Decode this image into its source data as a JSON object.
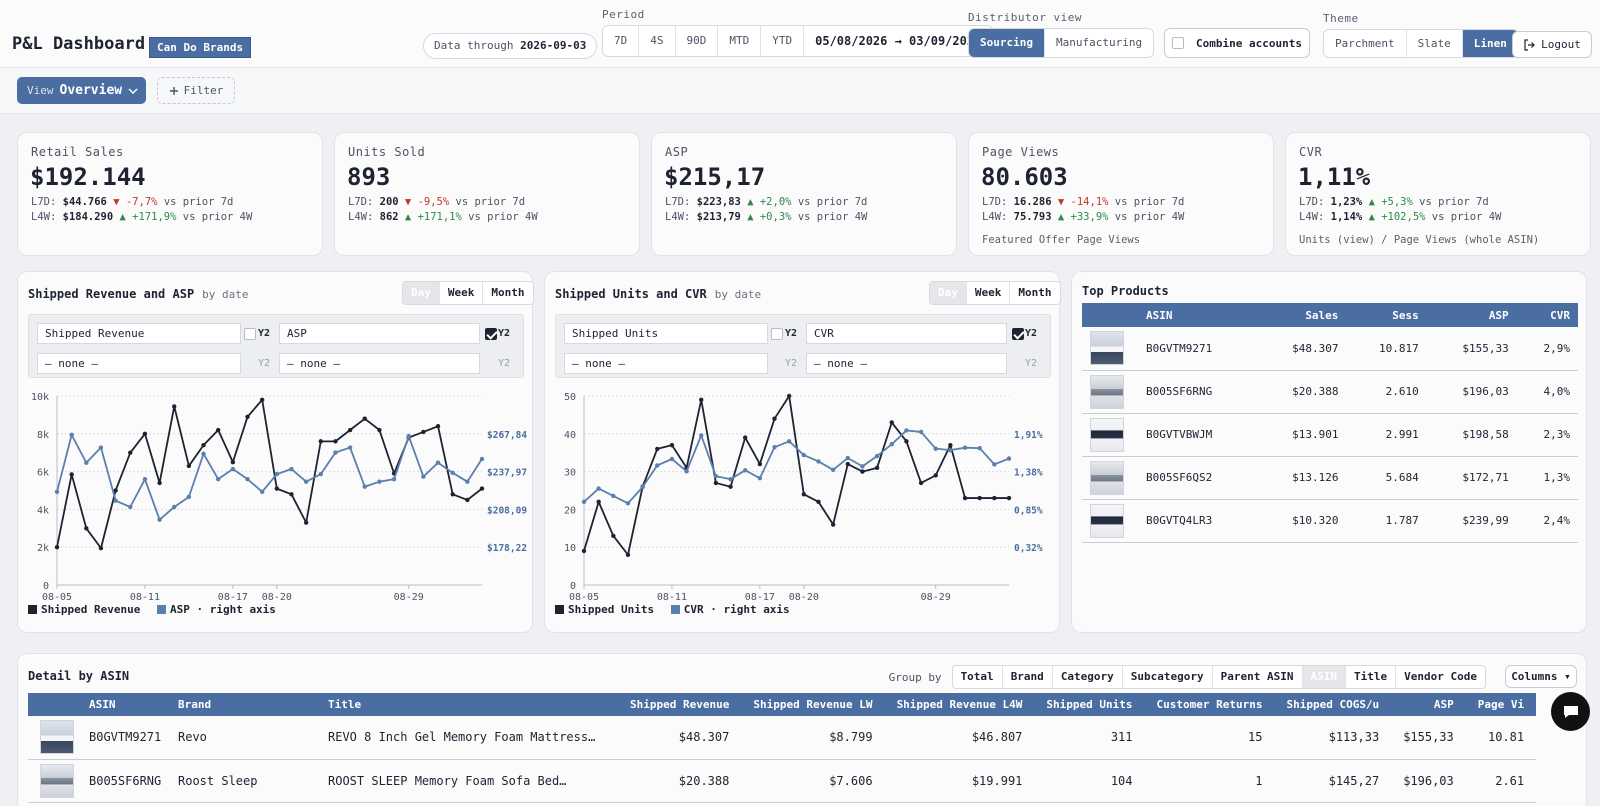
{
  "header": {
    "title": "P&L Dashboard",
    "brand": "Can Do Brands",
    "data_through_label": "Data through",
    "data_through_value": "2026-09-03",
    "period_label": "Period",
    "period_options": [
      "7D",
      "4S",
      "90D",
      "MTD",
      "YTD"
    ],
    "date_range": "05/08/2026 → 03/09/2026",
    "distributor_label": "Distributor view",
    "distributor_options": [
      "Sourcing",
      "Manufacturing"
    ],
    "distributor_selected": "Sourcing",
    "combine_accounts": "Combine accounts",
    "theme_label": "Theme",
    "theme_options": [
      "Parchment",
      "Slate",
      "Linen"
    ],
    "theme_selected": "Linen",
    "logout": "Logout"
  },
  "toolbar": {
    "view_label": "View",
    "view_value": "Overview",
    "filter_label": "Filter"
  },
  "kpis": [
    {
      "title": "Retail Sales",
      "value": "$192.144",
      "l7d_label": "L7D:",
      "l7d_value": "$44.766",
      "l7d_change": "▼ -7,7%",
      "l7d_dir": "down",
      "l7d_suffix": "vs prior 7d",
      "l4w_label": "L4W:",
      "l4w_value": "$184.290",
      "l4w_change": "▲ +171,9%",
      "l4w_dir": "up",
      "l4w_suffix": "vs prior 4W",
      "note": ""
    },
    {
      "title": "Units Sold",
      "value": "893",
      "l7d_label": "L7D:",
      "l7d_value": "200",
      "l7d_change": "▼ -9,5%",
      "l7d_dir": "down",
      "l7d_suffix": "vs prior 7d",
      "l4w_label": "L4W:",
      "l4w_value": "862",
      "l4w_change": "▲ +171,1%",
      "l4w_dir": "up",
      "l4w_suffix": "vs prior 4W",
      "note": ""
    },
    {
      "title": "ASP",
      "value": "$215,17",
      "l7d_label": "L7D:",
      "l7d_value": "$223,83",
      "l7d_change": "▲ +2,0%",
      "l7d_dir": "up",
      "l7d_suffix": "vs prior 7d",
      "l4w_label": "L4W:",
      "l4w_value": "$213,79",
      "l4w_change": "▲ +0,3%",
      "l4w_dir": "up",
      "l4w_suffix": "vs prior 4W",
      "note": ""
    },
    {
      "title": "Page Views",
      "value": "80.603",
      "l7d_label": "L7D:",
      "l7d_value": "16.286",
      "l7d_change": "▼ -14,1%",
      "l7d_dir": "down",
      "l7d_suffix": "vs prior 7d",
      "l4w_label": "L4W:",
      "l4w_value": "75.793",
      "l4w_change": "▲ +33,9%",
      "l4w_dir": "up",
      "l4w_suffix": "vs prior 4W",
      "note": "Featured Offer Page Views"
    },
    {
      "title": "CVR",
      "value": "1,11%",
      "l7d_label": "L7D:",
      "l7d_value": "1,23%",
      "l7d_change": "▲ +5,3%",
      "l7d_dir": "up",
      "l7d_suffix": "vs prior 7d",
      "l4w_label": "L4W:",
      "l4w_value": "1,14%",
      "l4w_change": "▲ +102,5%",
      "l4w_dir": "up",
      "l4w_suffix": "vs prior 4W",
      "note": "Units (view) / Page Views (whole ASIN)"
    }
  ],
  "panels": {
    "revenue": {
      "title": "Shipped Revenue and ASP",
      "subtitle": "by date",
      "granularity": [
        "Day",
        "Week",
        "Month"
      ],
      "primary_metric": "Shipped Revenue",
      "secondary_metric": "ASP",
      "none_label": "— none —",
      "y2_label": "Y2",
      "legend": [
        "Shipped Revenue",
        "ASP · right axis"
      ]
    },
    "units": {
      "title": "Shipped Units and CVR",
      "subtitle": "by date",
      "granularity": [
        "Day",
        "Week",
        "Month"
      ],
      "primary_metric": "Shipped Units",
      "secondary_metric": "CVR",
      "none_label": "— none —",
      "y2_label": "Y2",
      "legend": [
        "Shipped Units",
        "CVR · right axis"
      ]
    }
  },
  "colors": {
    "accent": "#4a6ea1",
    "dark_series": "#1d2330",
    "blue_series": "#5b7fae",
    "up": "#2f8a4a",
    "down": "#c0392b"
  },
  "chart_data": [
    {
      "type": "line",
      "title": "Shipped Revenue and ASP",
      "x_tick_labels": [
        "08-05",
        "08-11",
        "08-17",
        "08-20",
        "08-29"
      ],
      "y_ticks": [
        "0",
        "2k",
        "4k",
        "6k",
        "8k",
        "10k"
      ],
      "ylim": [
        0,
        10000
      ],
      "y2_ticks": [
        "$178,22",
        "$208,09",
        "$237,97",
        "$267,84"
      ],
      "y2lim": [
        148.35,
        297.71
      ],
      "x": [
        "08-05",
        "08-06",
        "08-07",
        "08-08",
        "08-09",
        "08-10",
        "08-11",
        "08-12",
        "08-13",
        "08-14",
        "08-15",
        "08-16",
        "08-17",
        "08-18",
        "08-19",
        "08-20",
        "08-21",
        "08-22",
        "08-23",
        "08-24",
        "08-25",
        "08-26",
        "08-27",
        "08-28",
        "08-29",
        "08-30",
        "08-31",
        "09-01",
        "09-02",
        "09-03"
      ],
      "series": [
        {
          "name": "Shipped Revenue",
          "axis": "left",
          "values": [
            2000,
            5850,
            3000,
            1950,
            5000,
            7000,
            8000,
            5400,
            9450,
            6300,
            7400,
            8200,
            6500,
            8900,
            9800,
            5100,
            4800,
            3300,
            7600,
            7600,
            8200,
            8800,
            8200,
            5900,
            7800,
            8100,
            8400,
            4800,
            4500,
            5100
          ]
        },
        {
          "name": "ASP",
          "axis": "right",
          "values": [
            222,
            267,
            245,
            257,
            215,
            210,
            232,
            200,
            210,
            218,
            252,
            232,
            240,
            232,
            222,
            236,
            240,
            230,
            236,
            253,
            257,
            226,
            230,
            232,
            266,
            234,
            245,
            237,
            230,
            248
          ]
        }
      ]
    },
    {
      "type": "line",
      "title": "Shipped Units and CVR",
      "x_tick_labels": [
        "08-05",
        "08-11",
        "08-17",
        "08-20",
        "08-29"
      ],
      "y_ticks": [
        "0",
        "10",
        "20",
        "30",
        "40",
        "50"
      ],
      "ylim": [
        0,
        50
      ],
      "y2_ticks": [
        "0,32%",
        "0,85%",
        "1,38%",
        "1,91%"
      ],
      "y2lim": [
        -1.24,
        2.6
      ],
      "x": [
        "08-05",
        "08-06",
        "08-07",
        "08-08",
        "08-09",
        "08-10",
        "08-11",
        "08-12",
        "08-13",
        "08-14",
        "08-15",
        "08-16",
        "08-17",
        "08-18",
        "08-19",
        "08-20",
        "08-21",
        "08-22",
        "08-23",
        "08-24",
        "08-25",
        "08-26",
        "08-27",
        "08-28",
        "08-29",
        "08-30",
        "08-31",
        "09-01",
        "09-02",
        "09-03"
      ],
      "series": [
        {
          "name": "Shipped Units",
          "axis": "left",
          "values": [
            9,
            22,
            13,
            8,
            26,
            36,
            37,
            31,
            49,
            27,
            26,
            39,
            32,
            44,
            50,
            24,
            22,
            16,
            32,
            30,
            31,
            43,
            38,
            27,
            29,
            37,
            23,
            23,
            23,
            23
          ]
        },
        {
          "name": "CVR",
          "axis": "right",
          "values": [
            0.45,
            0.72,
            0.57,
            0.42,
            0.75,
            1.19,
            1.32,
            1.07,
            1.8,
            0.97,
            0.91,
            1.09,
            0.93,
            1.56,
            1.68,
            1.4,
            1.27,
            1.1,
            1.34,
            1.17,
            1.38,
            1.62,
            1.9,
            1.87,
            1.53,
            1.5,
            1.55,
            1.54,
            1.21,
            1.33
          ]
        }
      ]
    }
  ],
  "top_products": {
    "title": "Top Products",
    "columns": [
      "ASIN",
      "Sales",
      "Sess",
      "ASP",
      "CVR"
    ],
    "rows": [
      {
        "asin": "B0GVTM9271",
        "sales": "$48.307",
        "sess": "10.817",
        "asp": "$155,33",
        "cvr": "2,9%"
      },
      {
        "asin": "B005SF6RNG",
        "sales": "$20.388",
        "sess": "2.610",
        "asp": "$196,03",
        "cvr": "4,0%"
      },
      {
        "asin": "B0GVTVBWJM",
        "sales": "$13.901",
        "sess": "2.991",
        "asp": "$198,58",
        "cvr": "2,3%"
      },
      {
        "asin": "B005SF6QS2",
        "sales": "$13.126",
        "sess": "5.684",
        "asp": "$172,71",
        "cvr": "1,3%"
      },
      {
        "asin": "B0GVTQ4LR3",
        "sales": "$10.320",
        "sess": "1.787",
        "asp": "$239,99",
        "cvr": "2,4%"
      }
    ]
  },
  "detail": {
    "title": "Detail by ASIN",
    "group_by_label": "Group by",
    "group_by_options": [
      "Total",
      "Brand",
      "Category",
      "Subcategory",
      "Parent ASIN",
      "ASIN",
      "Title",
      "Vendor Code"
    ],
    "group_by_selected": "ASIN",
    "columns_button": "Columns ▾",
    "columns": [
      "ASIN",
      "Brand",
      "Title",
      "Shipped Revenue",
      "Shipped Revenue LW",
      "Shipped Revenue L4W",
      "Shipped Units",
      "Customer Returns",
      "Shipped COGS/u",
      "ASP",
      "Page Vi"
    ],
    "rows": [
      {
        "asin": "B0GVTM9271",
        "brand": "Revo",
        "title": "REVO 8 Inch Gel Memory Foam Mattress…",
        "rev": "$48.307",
        "rev_lw": "$8.799",
        "rev_l4w": "$46.807",
        "units": "311",
        "returns": "15",
        "cogs": "$113,33",
        "asp": "$155,33",
        "pv": "10.81"
      },
      {
        "asin": "B005SF6RNG",
        "brand": "Roost Sleep",
        "title": "ROOST SLEEP Memory Foam Sofa Bed…",
        "rev": "$20.388",
        "rev_lw": "$7.606",
        "rev_l4w": "$19.991",
        "units": "104",
        "returns": "1",
        "cogs": "$145,27",
        "asp": "$196,03",
        "pv": "2.61"
      }
    ]
  },
  "icons": {
    "chevron": "chevron-down-icon",
    "plus": "plus-icon",
    "logout": "logout-icon",
    "chat": "chat-icon"
  }
}
